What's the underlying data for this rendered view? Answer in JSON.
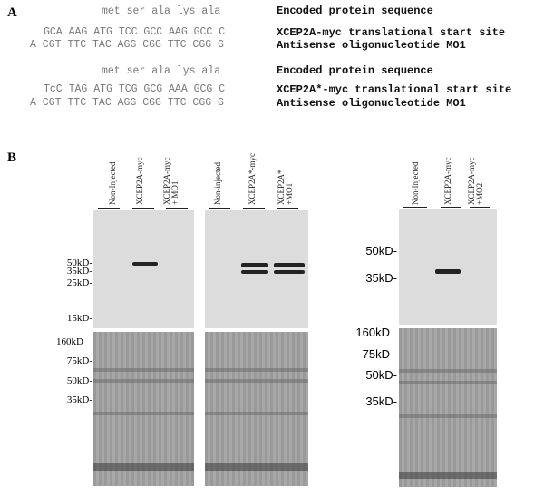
{
  "panelA": {
    "label": "A",
    "block1": {
      "protein": "met ser ala lys ala",
      "protein_label": "Encoded protein sequence",
      "sense": "GCA AAG ATG TCC GCC AAG GCC C",
      "sense_label": "XCEP2A-myc translational start site",
      "antisense": "A CGT TTC TAC AGG CGG TTC CGG G",
      "antisense_label": "Antisense oligonucleotide MO1"
    },
    "block2": {
      "protein": "met ser ala lys ala",
      "protein_label": "Encoded protein sequence",
      "sense": "TcC TAG ATG TCG GCG AAA GCG C",
      "sense_label": "XCEP2A*-myc translational start site",
      "antisense": "A CGT TTC TAC AGG CGG TTC CGG G",
      "antisense_label": "Antisense oligonucleotide MO1"
    }
  },
  "panelB": {
    "label": "B",
    "gel1": {
      "lanes": [
        "Non-Injected",
        "XCEP2A-myc",
        "XCEP2A-myc\n+ MO1"
      ],
      "markers": [
        "50kD-",
        "35kD-",
        "25kD-",
        "15kD-"
      ],
      "lower_markers": [
        "160kD",
        "75kD-",
        "50kD-",
        "35kD-"
      ]
    },
    "gel2": {
      "lanes": [
        "Non-injected",
        "XCEP2A*-myc",
        "XCEP2A*\n+MO1"
      ]
    },
    "gel3": {
      "lanes": [
        "Non-Injected",
        "XCEP2A-myc",
        "XCEP2A-myc\n+MO2"
      ],
      "markers": [
        "50kD-",
        "35kD-"
      ],
      "lower_markers": [
        "160kD",
        "75kD",
        "50kD-",
        "35kD-"
      ]
    }
  }
}
